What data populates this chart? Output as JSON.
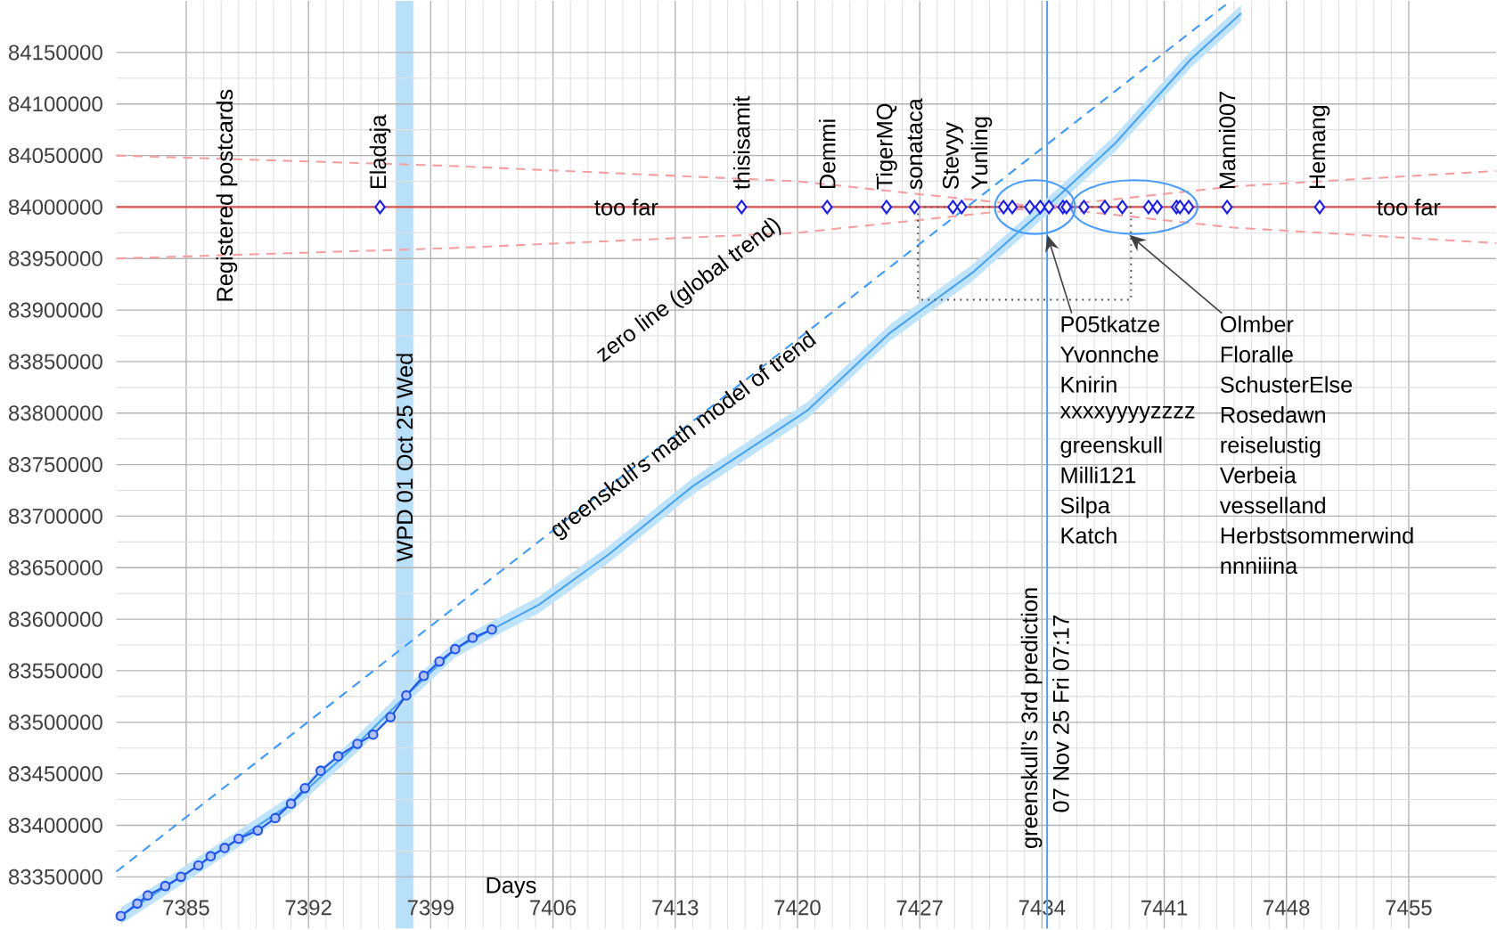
{
  "chart_data": {
    "type": "line",
    "xlabel": "Days",
    "ylabel": "Registered postcards",
    "xlim": [
      7381,
      7460
    ],
    "ylim": [
      83300000,
      84200000
    ],
    "xticks": [
      7385,
      7392,
      7399,
      7406,
      7413,
      7420,
      7427,
      7434,
      7441,
      7448,
      7455
    ],
    "yticks": [
      83350000,
      83400000,
      83450000,
      83500000,
      83550000,
      83600000,
      83650000,
      83700000,
      83750000,
      83800000,
      83850000,
      83900000,
      83950000,
      84000000,
      84050000,
      84100000,
      84150000
    ],
    "grid": true,
    "series": [
      {
        "color": "#4aa3f0",
        "marker": "none",
        "x": [
          7381.25,
          7384.7,
          7388.0,
          7391.0,
          7394.8,
          7397.6,
          7400.4,
          7402.5,
          7405.2,
          7409.2,
          7414.0,
          7420.6,
          7425.3,
          7430.0,
          7434.4,
          7438.2,
          7442.5,
          7445.4
        ],
        "values": [
          83312000,
          83350000,
          83387000,
          83421000,
          83479000,
          83526000,
          83571000,
          83590000,
          83614000,
          83663000,
          83729000,
          83803000,
          83878000,
          83936000,
          84002000,
          84062000,
          84143000,
          84188000
        ],
        "lower": [
          83304000,
          83342000,
          83379000,
          83413000,
          83471000,
          83518000,
          83563000,
          83582000,
          83606000,
          83655000,
          83721000,
          83795000,
          83870000,
          83928000,
          83994000,
          84054000,
          84135000,
          84180000
        ],
        "upper": [
          83320000,
          83358000,
          83395000,
          83429000,
          83487000,
          83534000,
          83579000,
          83598000,
          83622000,
          83671000,
          83737000,
          83811000,
          83886000,
          83944000,
          84010000,
          84070000,
          84151000,
          84196000
        ]
      },
      {
        "color": "#2255ee",
        "marker": "circle",
        "x": [
          7381.25,
          7382.2,
          7382.8,
          7383.8,
          7384.7,
          7385.7,
          7386.4,
          7387.2,
          7388.0,
          7389.1,
          7390.1,
          7391.0,
          7391.8,
          7392.7,
          7393.7,
          7394.8,
          7395.7,
          7396.7,
          7397.6,
          7398.6,
          7399.5,
          7400.4,
          7401.4,
          7402.5
        ],
        "values": [
          83312000,
          83324000,
          83332000,
          83341000,
          83350000,
          83361000,
          83370000,
          83378000,
          83387000,
          83395000,
          83407000,
          83421000,
          83436000,
          83453000,
          83467000,
          83479000,
          83488000,
          83505000,
          83526000,
          83545000,
          83559000,
          83571000,
          83582000,
          83590000
        ]
      },
      {
        "color": "#3d9aff",
        "line_style": "dashed",
        "marker": "none",
        "x": [
          7381,
          7444.8
        ],
        "values": [
          83355000,
          84200000
        ]
      },
      {
        "color": "#f5a0a0",
        "line_style": "dashed",
        "marker": "none",
        "x": [
          7381,
          7400,
          7420,
          7434,
          7445,
          7460
        ],
        "values": [
          84050000,
          84040000,
          84025000,
          84000000,
          83980000,
          83965000
        ]
      },
      {
        "color": "#f5a0a0",
        "line_style": "dashed",
        "marker": "none",
        "x": [
          7381,
          7400,
          7420,
          7434,
          7445,
          7460
        ],
        "values": [
          83950000,
          83960000,
          83975000,
          84000000,
          84020000,
          84035000
        ]
      },
      {
        "type": "scatter",
        "color": "#1a1aff",
        "marker": "diamond",
        "x": [
          7396.1,
          7416.8,
          7421.7,
          7425.1,
          7426.7,
          7428.9,
          7429.4,
          7431.8,
          7432.3,
          7433.3,
          7433.9,
          7434.4,
          7435.2,
          7435.4,
          7436.4,
          7437.6,
          7438.6,
          7440.1,
          7440.6,
          7441.7,
          7441.9,
          7442.4,
          7444.6,
          7449.9
        ],
        "values": [
          84000000,
          84000000,
          84000000,
          84000000,
          84000000,
          84000000,
          84000000,
          84000000,
          84000000,
          84000000,
          84000000,
          84000000,
          84000000,
          84000000,
          84000000,
          84000000,
          84000000,
          84000000,
          84000000,
          84000000,
          84000000,
          84000000,
          84000000,
          84000000
        ],
        "value_labels": [
          "Eladaja",
          "thisisamit",
          "Demmi",
          "TigerMQ",
          "sonataca",
          "Stevyy",
          "Yunling",
          null,
          null,
          null,
          null,
          null,
          null,
          null,
          null,
          null,
          null,
          null,
          null,
          null,
          null,
          null,
          "Manni007",
          "Hemang"
        ]
      }
    ],
    "ref_lines": [
      {
        "axis": "y",
        "value": 84000000,
        "color": "#d9534f"
      },
      {
        "axis": "x",
        "value": 7434.3,
        "label": "greenskull’s 3rd prediction",
        "color": "#4a9eff"
      }
    ],
    "bands": [
      {
        "axis": "x",
        "from": 7397,
        "to": 7398,
        "label": "WPD 01 Oct 25 Wed",
        "color": "#b9e0fa"
      }
    ],
    "annotations": [
      "zero line (global trend)",
      "greenskull’s math model of trend",
      {
        "text": "too far",
        "x": 7410.2,
        "y": 84000000
      },
      {
        "text": "too far",
        "x": 7455,
        "y": 84000000
      },
      {
        "text": "07 Nov 25 Fri 07:17",
        "x": 7434.3,
        "y": 83407000
      },
      {
        "text": "P05tkatze",
        "x": 7434.3,
        "y": 83973000
      },
      "Yvonnche",
      "Knirin",
      "xxxxyyyyzzzz",
      "greenskull",
      "Milli121",
      "Silpa",
      "Katch",
      "Olmber",
      "Floralle",
      "SchusterElse",
      "Rosedawn",
      "reiselustig",
      "Verbeia",
      "vesselland",
      "Herbstsommerwind",
      "nnniiina"
    ]
  }
}
